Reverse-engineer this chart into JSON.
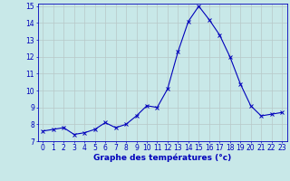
{
  "x": [
    0,
    1,
    2,
    3,
    4,
    5,
    6,
    7,
    8,
    9,
    10,
    11,
    12,
    13,
    14,
    15,
    16,
    17,
    18,
    19,
    20,
    21,
    22,
    23
  ],
  "y": [
    7.6,
    7.7,
    7.8,
    7.4,
    7.5,
    7.7,
    8.1,
    7.8,
    8.0,
    8.5,
    9.1,
    9.0,
    10.1,
    12.3,
    14.1,
    15.0,
    14.2,
    13.3,
    12.0,
    10.4,
    9.1,
    8.5,
    8.6,
    8.7
  ],
  "line_color": "#0000bb",
  "marker": "x",
  "marker_size": 2.5,
  "linewidth": 0.8,
  "xlabel": "Graphe des températures (°c)",
  "xlabel_fontsize": 6.5,
  "ylim": [
    7,
    15
  ],
  "xlim": [
    -0.5,
    23.5
  ],
  "yticks": [
    7,
    8,
    9,
    10,
    11,
    12,
    13,
    14,
    15
  ],
  "xticks": [
    0,
    1,
    2,
    3,
    4,
    5,
    6,
    7,
    8,
    9,
    10,
    11,
    12,
    13,
    14,
    15,
    16,
    17,
    18,
    19,
    20,
    21,
    22,
    23
  ],
  "grid_color": "#b8c8c8",
  "bg_color": "#c8e8e8",
  "tick_color": "#0000bb",
  "tick_fontsize": 5.5,
  "spine_color": "#0000bb",
  "xlabel_color": "#0000bb",
  "xlabel_bold": true
}
